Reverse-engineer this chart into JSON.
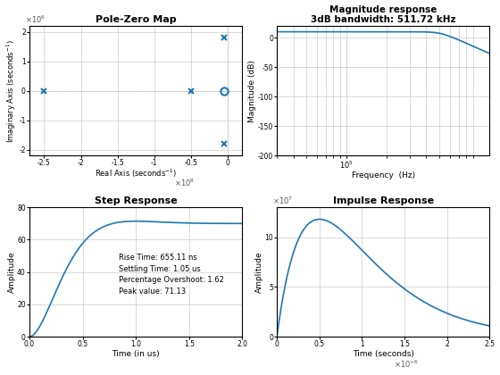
{
  "title_pz": "Pole-Zero Map",
  "title_mag": "Magnitude response\n3dB bandwidth: 511.72 kHz",
  "title_step": "Step Response",
  "title_imp": "Impulse Response",
  "poles_real": [
    -250000000.0,
    -50000000.0,
    -5000000.0,
    -5000000.0
  ],
  "poles_imag": [
    0,
    0,
    1800000.0,
    -1800000.0
  ],
  "zeros_real": [
    -5000000.0
  ],
  "zeros_imag": [
    0
  ],
  "pz_xlim": [
    -270000000.0,
    20000000.0
  ],
  "pz_ylim": [
    -2200000.0,
    2200000.0
  ],
  "pz_xticks": [
    -250000000.0,
    -200000000.0,
    -150000000.0,
    -100000000.0,
    -50000000.0,
    0.0
  ],
  "pz_xticklabels": [
    "-2.5",
    "-2",
    "-1.5",
    "-1",
    "-0.5",
    "0"
  ],
  "pz_yticks": [
    -2000000.0,
    -1000000.0,
    0,
    1000000.0,
    2000000.0
  ],
  "pz_yticklabels": [
    "-2",
    "-1",
    "0",
    "1",
    "2"
  ],
  "mag_ylim": [
    -200,
    20
  ],
  "mag_yticks": [
    0,
    -50,
    -100,
    -150,
    -200
  ],
  "mag_ylabel": "Magnitude (dB)",
  "mag_xlabel": "Frequency  (Hz)",
  "mag_f3db": 511720.0,
  "step_xlabel": "Time (in us)",
  "step_ylabel": "Amplitude",
  "step_ylim": [
    0,
    80
  ],
  "step_xlim": [
    0,
    2
  ],
  "step_xticks": [
    0,
    0.5,
    1.0,
    1.5,
    2.0
  ],
  "step_yticks": [
    0,
    20,
    40,
    60,
    80
  ],
  "step_peak": 71.13,
  "step_text": "Rise Time: 655.11 ns\nSettling Time: 1.05 us\nPercentage Overshoot: 1.62\nPeak value: 71.13",
  "imp_xlabel": "Time (seconds)",
  "imp_ylabel": "Amplitude",
  "imp_xlim": [
    0,
    2.5e-06
  ],
  "imp_xticks": [
    0,
    5e-07,
    1e-06,
    1.5e-06,
    2e-06,
    2.5e-06
  ],
  "imp_xticklabels": [
    "0",
    "0.5",
    "1",
    "1.5",
    "2",
    "2.5"
  ],
  "imp_yticks": [
    0,
    5000000.0,
    10000000.0
  ],
  "imp_yticklabels": [
    "0",
    "5",
    "10"
  ],
  "imp_ylim": [
    0,
    13000000.0
  ],
  "imp_peak": 11800000.0,
  "imp_peak_t": 3e-07,
  "imp_tau": 5e-07,
  "line_color": "#1f77b4",
  "bg_color": "#ffffff",
  "grid_color": "#cccccc"
}
